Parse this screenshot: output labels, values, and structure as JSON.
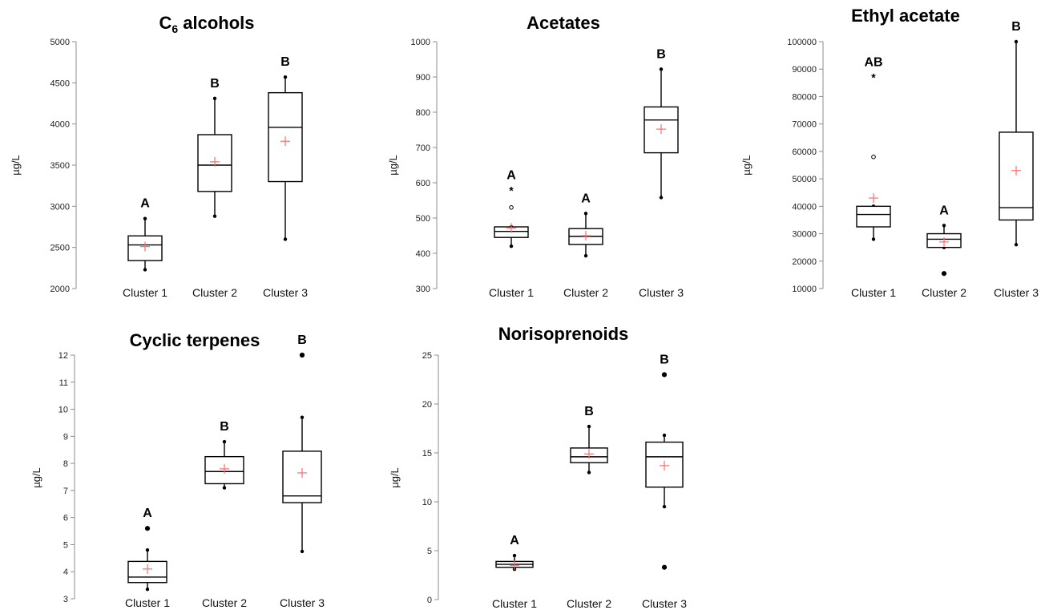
{
  "chart_data": [
    {
      "type": "box",
      "title": "C6 alcohols",
      "title_main": "C",
      "title_sub": "6",
      "title_rest": " alcohols",
      "ylabel": "µg/L",
      "ylim": [
        2000,
        5000
      ],
      "yticks": [
        "2000",
        "2500",
        "3000",
        "3500",
        "4000",
        "4500",
        "5000"
      ],
      "categories": [
        "Cluster 1",
        "Cluster 2",
        "Cluster 3"
      ],
      "boxes": [
        {
          "min": 2230,
          "q1": 2340,
          "median": 2530,
          "q3": 2640,
          "max": 2850,
          "mean": 2510,
          "outliers": [],
          "extremes": [],
          "letter": "A"
        },
        {
          "min": 2880,
          "q1": 3180,
          "median": 3500,
          "q3": 3870,
          "max": 4310,
          "mean": 3540,
          "outliers": [],
          "extremes": [],
          "letter": "B"
        },
        {
          "min": 2600,
          "q1": 3300,
          "median": 3960,
          "q3": 4380,
          "max": 4570,
          "mean": 3790,
          "outliers": [],
          "extremes": [],
          "letter": "B"
        }
      ]
    },
    {
      "type": "box",
      "title": "Acetates",
      "ylabel": "µg/L",
      "ylim": [
        300,
        1000
      ],
      "yticks": [
        "300",
        "400",
        "500",
        "600",
        "700",
        "800",
        "900",
        "1000"
      ],
      "categories": [
        "Cluster 1",
        "Cluster 2",
        "Cluster 3"
      ],
      "boxes": [
        {
          "min": 420,
          "q1": 445,
          "median": 462,
          "q3": 475,
          "max": 475,
          "mean": 472,
          "outliers": [
            530
          ],
          "extremes": [
            578
          ],
          "letter": "A"
        },
        {
          "min": 393,
          "q1": 425,
          "median": 448,
          "q3": 470,
          "max": 513,
          "mean": 450,
          "outliers": [],
          "extremes": [],
          "letter": "A"
        },
        {
          "min": 558,
          "q1": 685,
          "median": 778,
          "q3": 815,
          "max": 922,
          "mean": 752,
          "outliers": [],
          "extremes": [],
          "letter": "B"
        }
      ]
    },
    {
      "type": "box",
      "title": "Ethyl acetate",
      "ylabel": "µg/L",
      "ylim": [
        10000,
        100000
      ],
      "yticks": [
        "10000",
        "20000",
        "30000",
        "40000",
        "50000",
        "60000",
        "70000",
        "80000",
        "90000",
        "100000"
      ],
      "categories": [
        "Cluster 1",
        "Cluster 2",
        "Cluster 3"
      ],
      "boxes": [
        {
          "min": 28000,
          "q1": 32500,
          "median": 37000,
          "q3": 40000,
          "max": 40000,
          "mean": 43000,
          "outliers": [
            58000
          ],
          "extremes": [
            87000
          ],
          "letter": "AB"
        },
        {
          "min": 25000,
          "q1": 25000,
          "median": 28000,
          "q3": 30000,
          "max": 33000,
          "mean": 27000,
          "outliers": [
            15500
          ],
          "extremes": [],
          "letter": "A"
        },
        {
          "min": 26000,
          "q1": 35000,
          "median": 39500,
          "q3": 67000,
          "max": 100000,
          "mean": 53000,
          "outliers": [],
          "extremes": [],
          "letter": "B"
        }
      ]
    },
    {
      "type": "box",
      "title": "Cyclic terpenes",
      "ylabel": "µg/L",
      "ylim": [
        3,
        12
      ],
      "yticks": [
        "3",
        "4",
        "5",
        "6",
        "7",
        "8",
        "9",
        "10",
        "11",
        "12"
      ],
      "categories": [
        "Cluster 1",
        "Cluster 2",
        "Cluster 3"
      ],
      "boxes": [
        {
          "min": 3.35,
          "q1": 3.6,
          "median": 3.8,
          "q3": 4.38,
          "max": 4.8,
          "mean": 4.1,
          "outliers": [
            5.6
          ],
          "extremes": [],
          "letter": "A"
        },
        {
          "min": 7.1,
          "q1": 7.25,
          "median": 7.7,
          "q3": 8.25,
          "max": 8.8,
          "mean": 7.8,
          "outliers": [],
          "extremes": [],
          "letter": "B"
        },
        {
          "min": 4.75,
          "q1": 6.55,
          "median": 6.8,
          "q3": 8.45,
          "max": 9.7,
          "mean": 7.65,
          "outliers": [
            12
          ],
          "extremes": [],
          "letter": "B"
        }
      ]
    },
    {
      "type": "box",
      "title": "Norisoprenoids",
      "ylabel": "µg/L",
      "ylim": [
        0,
        25
      ],
      "yticks": [
        "0",
        "5",
        "10",
        "15",
        "20",
        "25"
      ],
      "categories": [
        "Cluster 1",
        "Cluster 2",
        "Cluster 3"
      ],
      "boxes": [
        {
          "min": 3.1,
          "q1": 3.3,
          "median": 3.6,
          "q3": 3.9,
          "max": 4.5,
          "mean": 3.5,
          "outliers": [],
          "extremes": [],
          "letter": "A"
        },
        {
          "min": 13.0,
          "q1": 14.0,
          "median": 14.6,
          "q3": 15.5,
          "max": 17.7,
          "mean": 14.9,
          "outliers": [],
          "extremes": [],
          "letter": "B"
        },
        {
          "min": 9.5,
          "q1": 11.5,
          "median": 14.6,
          "q3": 16.1,
          "max": 16.8,
          "mean": 13.7,
          "outliers": [
            23.0,
            3.3
          ],
          "extremes": [],
          "letter": "B"
        }
      ]
    }
  ],
  "colors": {
    "box_line": "#000000",
    "axis_line": "#8c8c8c",
    "mean_marker": "#ff6b6b"
  }
}
